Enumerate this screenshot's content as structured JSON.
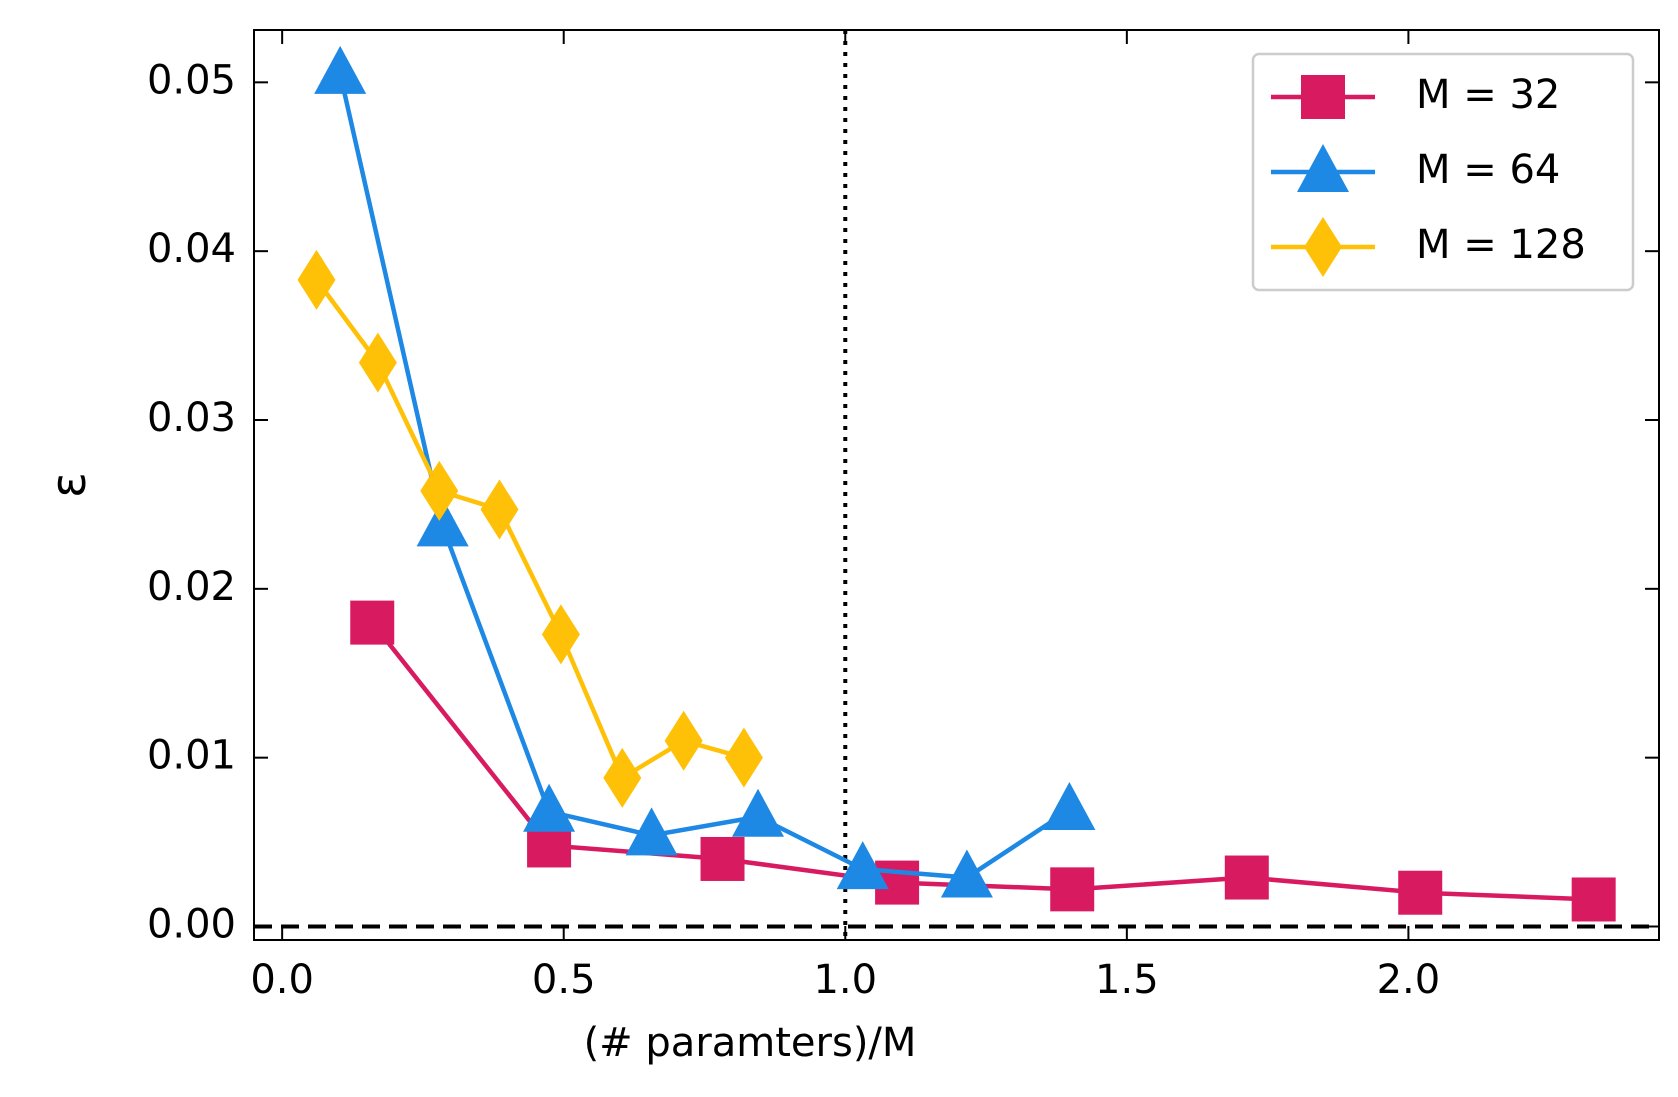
{
  "chart_data": {
    "type": "line",
    "xlabel": "(# paramters)/M",
    "ylabel": "ε",
    "xlim": [
      -0.05,
      2.445
    ],
    "ylim": [
      -0.0008,
      0.0531
    ],
    "xticks": [
      {
        "value": 0,
        "label": "0.0"
      },
      0.5,
      {
        "value": 1,
        "label": "1.0"
      },
      1.5,
      {
        "value": 2,
        "label": "2.0"
      }
    ],
    "yticks": [
      {
        "value": 0,
        "label": "0.00"
      },
      {
        "value": 0.01,
        "label": "0.01"
      },
      {
        "value": 0.02,
        "label": "0.02"
      },
      {
        "value": 0.03,
        "label": "0.03"
      },
      {
        "value": 0.04,
        "label": "0.04"
      },
      {
        "value": 0.05,
        "label": "0.05"
      }
    ],
    "vline": 1,
    "hline": 0,
    "legend": "upper right",
    "series": [
      {
        "name": "M = 32",
        "color": "#d81b60",
        "marker": "square",
        "x": [
          0.16,
          0.474,
          0.782,
          1.092,
          1.403,
          1.713,
          2.021,
          2.329
        ],
        "values": [
          0.018,
          0.0048,
          0.004,
          0.0026,
          0.0022,
          0.0029,
          0.002,
          0.0016
        ]
      },
      {
        "name": "M = 64",
        "color": "#1e88e5",
        "marker": "triangle",
        "x": [
          0.103,
          0.285,
          0.474,
          0.656,
          0.845,
          1.031,
          1.216,
          1.398
        ],
        "values": [
          0.0505,
          0.0237,
          0.0068,
          0.0054,
          0.0065,
          0.0034,
          0.0029,
          0.0069
        ]
      },
      {
        "name": "M = 128",
        "color": "#ffc107",
        "marker": "diamond",
        "x": [
          0.061,
          0.17,
          0.279,
          0.386,
          0.495,
          0.604,
          0.713,
          0.82
        ],
        "values": [
          0.0383,
          0.0334,
          0.0258,
          0.0247,
          0.0173,
          0.0088,
          0.011,
          0.01
        ]
      }
    ]
  }
}
